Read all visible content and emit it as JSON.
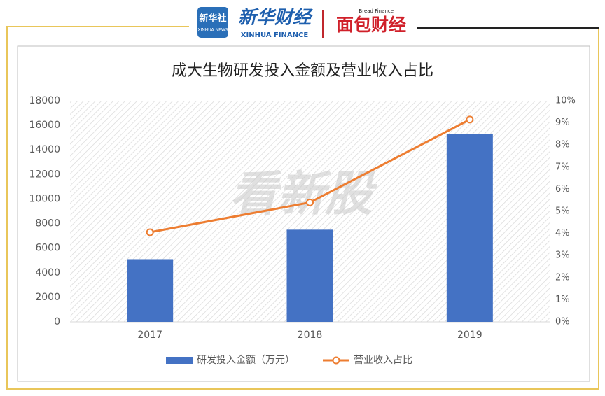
{
  "header": {
    "logo1": "新华社",
    "logo1_sub": "XINHUA NEWS",
    "logo2": "新华财经",
    "logo2_sub": "XINHUA FINANCE",
    "logo3": "面包财经",
    "logo3_sub": "Bread Finance"
  },
  "watermark": "看新股",
  "chart_data": {
    "type": "bar",
    "title": "成大生物研发投入金额及营业收入占比",
    "categories": [
      "2017",
      "2018",
      "2019"
    ],
    "series": [
      {
        "name": "研发投入金额（万元）",
        "type": "bar",
        "color": "#4472c4",
        "values": [
          5100,
          7500,
          15300
        ]
      },
      {
        "name": "营业收入占比",
        "type": "line",
        "axis": "y2",
        "color": "#ed7d31",
        "values": [
          4.05,
          5.4,
          9.15
        ]
      }
    ],
    "ylim": [
      0,
      18000
    ],
    "yticks": [
      0,
      2000,
      4000,
      6000,
      8000,
      10000,
      12000,
      14000,
      16000,
      18000
    ],
    "y2lim": [
      0,
      10
    ],
    "y2ticks": [
      {
        "value": 0,
        "label": "0%"
      },
      {
        "value": 1,
        "label": "1%"
      },
      {
        "value": 2,
        "label": "2%"
      },
      {
        "value": 3,
        "label": "3%"
      },
      {
        "value": 4,
        "label": "4%"
      },
      {
        "value": 5,
        "label": "5%"
      },
      {
        "value": 6,
        "label": "6%"
      },
      {
        "value": 7,
        "label": "7%"
      },
      {
        "value": 8,
        "label": "8%"
      },
      {
        "value": 9,
        "label": "9%"
      },
      {
        "value": 10,
        "label": "10%"
      }
    ],
    "legend": "bottom"
  }
}
